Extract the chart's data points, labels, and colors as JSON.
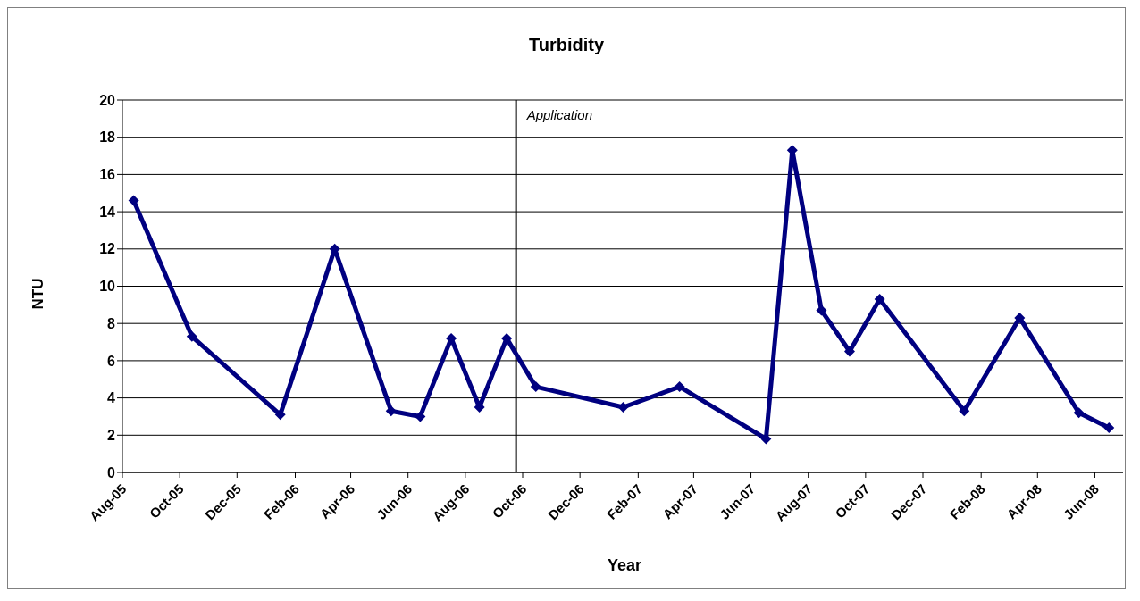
{
  "chart_data": {
    "type": "line",
    "title": "Turbidity",
    "xlabel": "Year",
    "ylabel": "NTU",
    "x": [
      "2005-08-13",
      "2005-10-14",
      "2006-01-16",
      "2006-03-15",
      "2006-05-14",
      "2006-06-14",
      "2006-07-17",
      "2006-08-16",
      "2006-09-14",
      "2006-10-15",
      "2007-01-16",
      "2007-03-17",
      "2007-06-17",
      "2007-07-15",
      "2007-08-15",
      "2007-09-14",
      "2007-10-16",
      "2008-01-14",
      "2008-03-13",
      "2008-05-15",
      "2008-06-16"
    ],
    "series": [
      {
        "color": "#000080",
        "values": [
          14.6,
          7.3,
          3.1,
          12.0,
          3.3,
          3.0,
          7.2,
          3.5,
          7.2,
          4.6,
          3.5,
          4.6,
          1.8,
          17.3,
          8.7,
          6.5,
          9.3,
          3.3,
          8.3,
          3.2,
          2.4
        ]
      }
    ],
    "xlim": [
      "2005-08-01",
      "2008-07-01"
    ],
    "xticks": [
      {
        "value": "2005-08-01",
        "label": "Aug-05"
      },
      {
        "value": "2005-10-01",
        "label": "Oct-05"
      },
      {
        "value": "2005-12-01",
        "label": "Dec-05"
      },
      {
        "value": "2006-02-01",
        "label": "Feb-06"
      },
      {
        "value": "2006-04-01",
        "label": "Apr-06"
      },
      {
        "value": "2006-06-01",
        "label": "Jun-06"
      },
      {
        "value": "2006-08-01",
        "label": "Aug-06"
      },
      {
        "value": "2006-10-01",
        "label": "Oct-06"
      },
      {
        "value": "2006-12-01",
        "label": "Dec-06"
      },
      {
        "value": "2007-02-01",
        "label": "Feb-07"
      },
      {
        "value": "2007-04-01",
        "label": "Apr-07"
      },
      {
        "value": "2007-06-01",
        "label": "Jun-07"
      },
      {
        "value": "2007-08-01",
        "label": "Aug-07"
      },
      {
        "value": "2007-10-01",
        "label": "Oct-07"
      },
      {
        "value": "2007-12-01",
        "label": "Dec-07"
      },
      {
        "value": "2008-02-01",
        "label": "Feb-08"
      },
      {
        "value": "2008-04-01",
        "label": "Apr-08"
      },
      {
        "value": "2008-06-01",
        "label": "Jun-08"
      }
    ],
    "ylim": [
      0,
      20
    ],
    "yticks": [
      0,
      2,
      4,
      6,
      8,
      10,
      12,
      14,
      16,
      18,
      20
    ],
    "ref_lines": [
      {
        "axis": "x",
        "value": "2006-09-24",
        "label": "Application",
        "color": "#000000"
      }
    ],
    "grid": "y",
    "legend": false,
    "marker": "diamond",
    "line_style": "solid"
  }
}
